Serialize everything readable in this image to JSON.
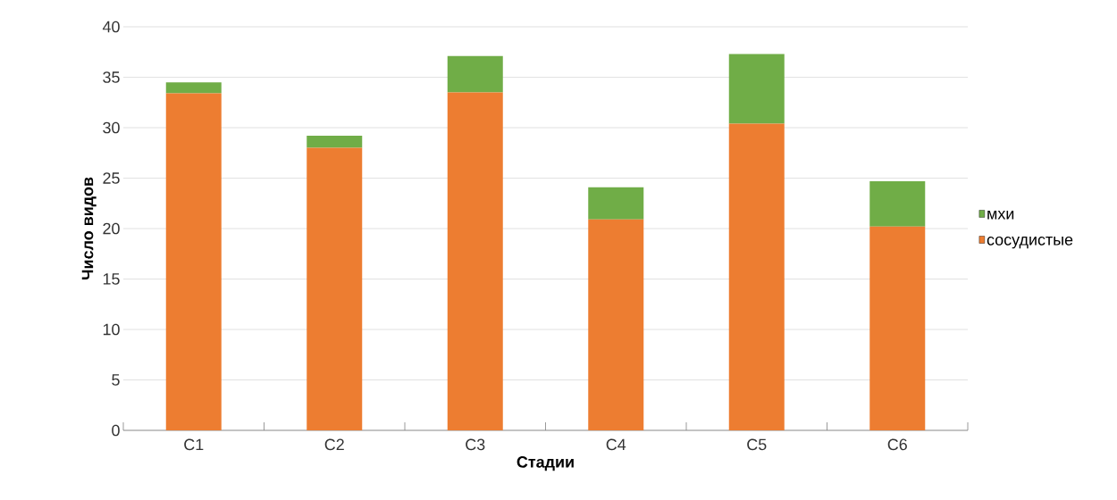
{
  "chart_data": {
    "type": "bar",
    "stacked": true,
    "xlabel": "Стадии",
    "ylabel": "Число видов",
    "categories": [
      "С1",
      "С2",
      "С3",
      "С4",
      "С5",
      "С6"
    ],
    "series": [
      {
        "name": "сосудистые",
        "color": "#ed7d31",
        "values": [
          33.4,
          28.0,
          33.5,
          20.9,
          30.4,
          20.2
        ]
      },
      {
        "name": "мхи",
        "color": "#70ad47",
        "values": [
          1.1,
          1.2,
          3.6,
          3.2,
          6.9,
          4.5
        ]
      }
    ],
    "ylim": [
      0,
      40
    ],
    "yticks": [
      0,
      5,
      10,
      15,
      20,
      25,
      30,
      35,
      40
    ],
    "grid": "y",
    "legend": "right"
  }
}
